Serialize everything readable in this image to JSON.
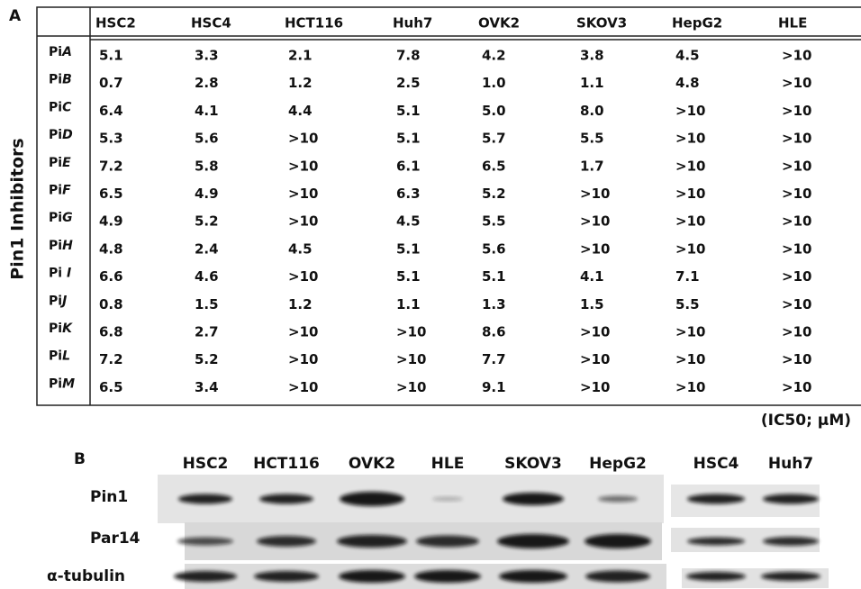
{
  "panel_a": {
    "label": "A",
    "axis_label": "Pin1 Inhibitors",
    "columns": [
      "HSC2",
      "HSC4",
      "HCT116",
      "Huh7",
      "OVK2",
      "SKOV3",
      "HepG2",
      "HLE"
    ],
    "rows": [
      {
        "label": [
          "Pi",
          "A"
        ],
        "cells": [
          "5.1",
          "3.3",
          "2.1",
          "7.8",
          "4.2",
          "3.8",
          "4.5",
          ">10"
        ]
      },
      {
        "label": [
          "Pi",
          "B"
        ],
        "cells": [
          "0.7",
          "2.8",
          "1.2",
          "2.5",
          "1.0",
          "1.1",
          "4.8",
          ">10"
        ]
      },
      {
        "label": [
          "Pi",
          "C"
        ],
        "cells": [
          "6.4",
          "4.1",
          "4.4",
          "5.1",
          "5.0",
          "8.0",
          ">10",
          ">10"
        ]
      },
      {
        "label": [
          "Pi",
          "D"
        ],
        "cells": [
          "5.3",
          "5.6",
          ">10",
          "5.1",
          "5.7",
          "5.5",
          ">10",
          ">10"
        ]
      },
      {
        "label": [
          "Pi",
          "E"
        ],
        "cells": [
          "7.2",
          "5.8",
          ">10",
          "6.1",
          "6.5",
          "1.7",
          ">10",
          ">10"
        ]
      },
      {
        "label": [
          "Pi",
          "F"
        ],
        "cells": [
          "6.5",
          "4.9",
          ">10",
          "6.3",
          "5.2",
          ">10",
          ">10",
          ">10"
        ]
      },
      {
        "label": [
          "Pi",
          "G"
        ],
        "cells": [
          "4.9",
          "5.2",
          ">10",
          "4.5",
          "5.5",
          ">10",
          ">10",
          ">10"
        ]
      },
      {
        "label": [
          "Pi",
          "H"
        ],
        "cells": [
          "4.8",
          "2.4",
          "4.5",
          "5.1",
          "5.6",
          ">10",
          ">10",
          ">10"
        ]
      },
      {
        "label": [
          "Pi ",
          "I"
        ],
        "cells": [
          "6.6",
          "4.6",
          ">10",
          "5.1",
          "5.1",
          "4.1",
          "7.1",
          ">10"
        ]
      },
      {
        "label": [
          "Pi",
          "J"
        ],
        "cells": [
          "0.8",
          "1.5",
          "1.2",
          "1.1",
          "1.3",
          "1.5",
          "5.5",
          ">10"
        ]
      },
      {
        "label": [
          "Pi",
          "K"
        ],
        "cells": [
          "6.8",
          "2.7",
          ">10",
          ">10",
          "8.6",
          ">10",
          ">10",
          ">10"
        ]
      },
      {
        "label": [
          "Pi",
          "L"
        ],
        "cells": [
          "7.2",
          "5.2",
          ">10",
          ">10",
          "7.7",
          ">10",
          ">10",
          ">10"
        ]
      },
      {
        "label": [
          "Pi",
          "M"
        ],
        "cells": [
          "6.5",
          "3.4",
          ">10",
          ">10",
          "9.1",
          ">10",
          ">10",
          ">10"
        ]
      }
    ],
    "unit_note": "(IC50; μM)"
  },
  "panel_b": {
    "label": "B",
    "lanes": [
      "HSC2",
      "HCT116",
      "OVK2",
      "HLE",
      "SKOV3",
      "HepG2",
      "HSC4",
      "Huh7"
    ],
    "proteins": [
      "Pin1",
      "Par14",
      "α-tubulin"
    ]
  }
}
